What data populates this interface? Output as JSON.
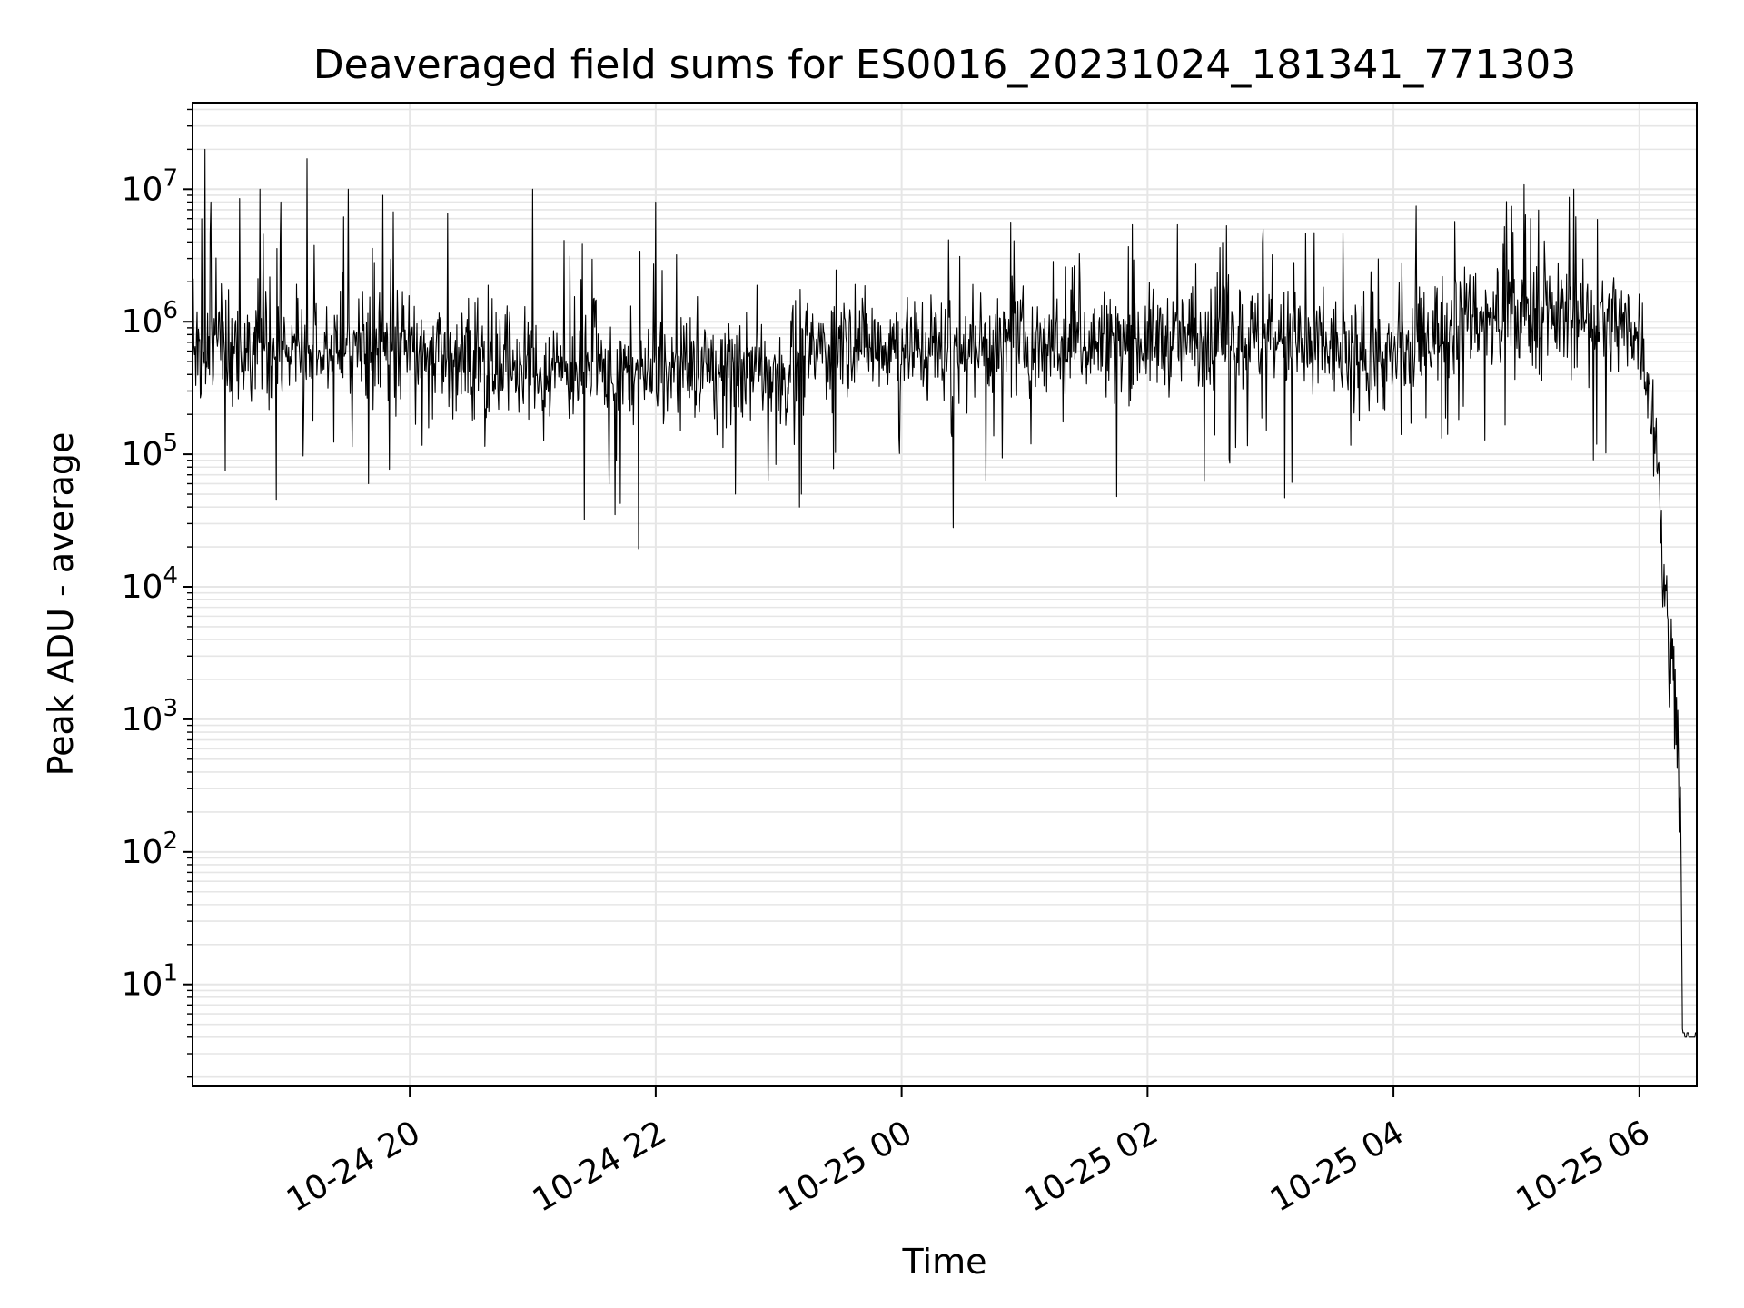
{
  "chart_data": {
    "type": "line",
    "title": "Deaveraged field sums for ES0016_20231024_181341_771303",
    "xlabel": "Time",
    "ylabel": "Peak ADU - average",
    "yscale": "log",
    "ylim": [
      1.7,
      45000000
    ],
    "xlim": [
      "2023-10-24 18:14",
      "2023-10-25 06:28"
    ],
    "grid": true,
    "series_color": "#000000",
    "grid_color": "#e6e6e6",
    "x_ticks": [
      {
        "label": "10-24 20",
        "time": "2023-10-24 20:00"
      },
      {
        "label": "10-24 22",
        "time": "2023-10-24 22:00"
      },
      {
        "label": "10-25 00",
        "time": "2023-10-25 00:00"
      },
      {
        "label": "10-25 02",
        "time": "2023-10-25 02:00"
      },
      {
        "label": "10-25 04",
        "time": "2023-10-25 04:00"
      },
      {
        "label": "10-25 06",
        "time": "2023-10-25 06:00"
      }
    ],
    "y_ticks": [
      {
        "base": "10",
        "exp": "1",
        "value": 10
      },
      {
        "base": "10",
        "exp": "2",
        "value": 100
      },
      {
        "base": "10",
        "exp": "3",
        "value": 1000
      },
      {
        "base": "10",
        "exp": "4",
        "value": 10000
      },
      {
        "base": "10",
        "exp": "5",
        "value": 100000
      },
      {
        "base": "10",
        "exp": "6",
        "value": 1000000
      },
      {
        "base": "10",
        "exp": "7",
        "value": 10000000
      }
    ],
    "series": [
      {
        "trend": [
          {
            "time": "2023-10-24 18:14",
            "value": 700000
          },
          {
            "time": "2023-10-24 19:00",
            "value": 650000
          },
          {
            "time": "2023-10-24 20:00",
            "value": 600000
          },
          {
            "time": "2023-10-24 21:00",
            "value": 450000
          },
          {
            "time": "2023-10-24 22:00",
            "value": 400000
          },
          {
            "time": "2023-10-24 23:00",
            "value": 450000
          },
          {
            "time": "2023-10-24 23:30",
            "value": 700000
          },
          {
            "time": "2023-10-25 00:30",
            "value": 650000
          },
          {
            "time": "2023-10-25 01:30",
            "value": 700000
          },
          {
            "time": "2023-10-25 03:00",
            "value": 750000
          },
          {
            "time": "2023-10-25 04:00",
            "value": 500000
          },
          {
            "time": "2023-10-25 04:30",
            "value": 1100000
          },
          {
            "time": "2023-10-25 05:30",
            "value": 1100000
          },
          {
            "time": "2023-10-25 06:00",
            "value": 900000
          },
          {
            "time": "2023-10-25 06:05",
            "value": 300000
          },
          {
            "time": "2023-10-25 06:09",
            "value": 100000
          },
          {
            "time": "2023-10-25 06:12",
            "value": 10000
          },
          {
            "time": "2023-10-25 06:15",
            "value": 3000
          },
          {
            "time": "2023-10-25 06:18",
            "value": 1500
          },
          {
            "time": "2023-10-25 06:20",
            "value": 300
          },
          {
            "time": "2023-10-25 06:21",
            "value": 4
          },
          {
            "time": "2023-10-25 06:28",
            "value": 4
          }
        ],
        "peaks": [
          {
            "time": "2023-10-24 18:20",
            "value": 20000000
          },
          {
            "time": "2023-10-24 18:23",
            "value": 8000000
          },
          {
            "time": "2023-10-24 18:37",
            "value": 8500000
          },
          {
            "time": "2023-10-24 18:47",
            "value": 10000000
          },
          {
            "time": "2023-10-24 18:57",
            "value": 8000000
          },
          {
            "time": "2023-10-24 19:10",
            "value": 17000000
          },
          {
            "time": "2023-10-24 19:30",
            "value": 10000000
          },
          {
            "time": "2023-10-24 19:47",
            "value": 9000000
          },
          {
            "time": "2023-10-24 21:00",
            "value": 10000000
          },
          {
            "time": "2023-10-24 22:00",
            "value": 8000000
          },
          {
            "time": "2023-10-25 05:07",
            "value": 6000000
          },
          {
            "time": "2023-10-25 05:28",
            "value": 10000000
          }
        ],
        "dips": [
          {
            "time": "2023-10-24 18:55",
            "value": 45000
          },
          {
            "time": "2023-10-24 19:40",
            "value": 60000
          },
          {
            "time": "2023-10-24 21:25",
            "value": 32000
          },
          {
            "time": "2023-10-24 21:40",
            "value": 35000
          },
          {
            "time": "2023-10-24 23:10",
            "value": 40000
          },
          {
            "time": "2023-10-25 00:25",
            "value": 28000
          },
          {
            "time": "2023-10-25 01:45",
            "value": 48000
          },
          {
            "time": "2023-10-25 03:07",
            "value": 47000
          }
        ]
      }
    ]
  }
}
